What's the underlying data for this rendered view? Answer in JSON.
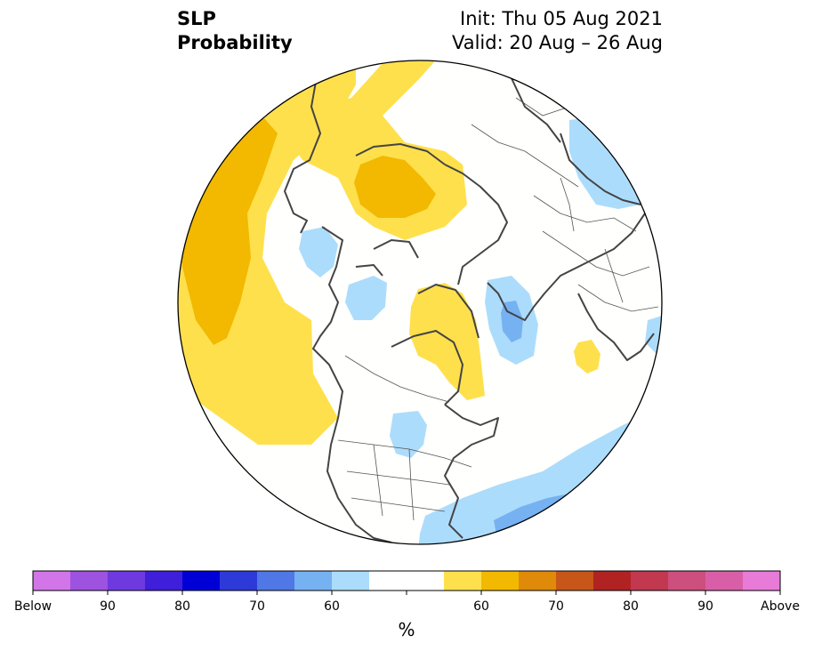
{
  "header": {
    "variable": "SLP",
    "product": "Probability",
    "init": "Init: Thu 05 Aug 2021",
    "valid": "Valid: 20 Aug – 26 Aug"
  },
  "colorbar": {
    "unit": "%",
    "colors": [
      "#d275e8",
      "#9e52e0",
      "#6e3ae0",
      "#3f1fd9",
      "#0000d6",
      "#2d3ad8",
      "#4f77e6",
      "#76b1f2",
      "#acdcfc",
      "#ffffff",
      "#ffffff",
      "#fee04d",
      "#f2b900",
      "#e08a0a",
      "#c75718",
      "#b12323",
      "#c1384f",
      "#cd4f7d",
      "#d85fa7",
      "#e87ad8"
    ],
    "labels": [
      "Below",
      "90",
      "80",
      "70",
      "60",
      "60",
      "70",
      "80",
      "90",
      "Above"
    ]
  },
  "map_colors": {
    "ocean_land": "#fffffd",
    "below_light": "#acdcfc",
    "below_mid": "#76b1f2",
    "above_light": "#fee04d",
    "above_mid": "#f2b900",
    "coast": "#444444"
  }
}
